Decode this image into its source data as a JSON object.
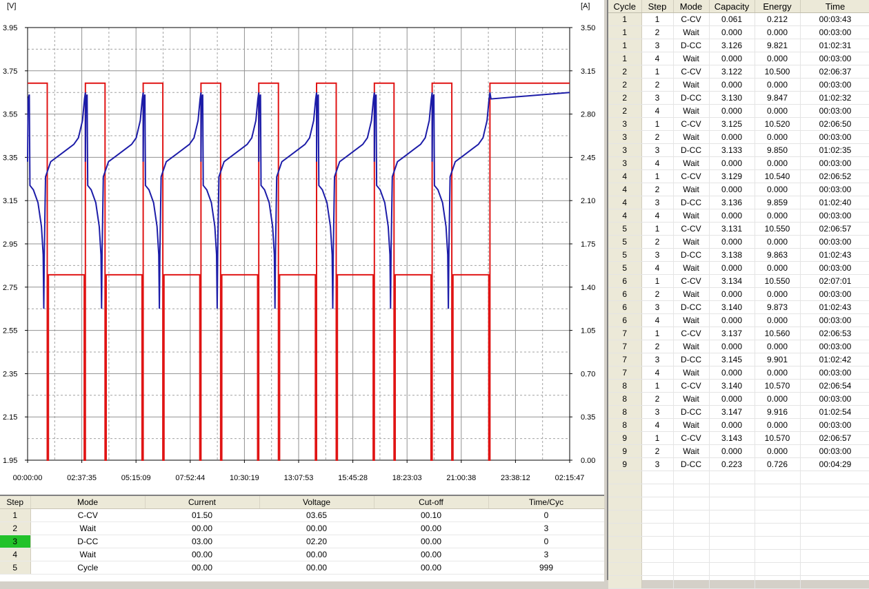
{
  "chart_data": {
    "type": "line",
    "x_ticks": [
      "00:00:00",
      "02:37:35",
      "05:15:09",
      "07:52:44",
      "10:30:19",
      "13:07:53",
      "15:45:28",
      "18:23:03",
      "21:00:38",
      "23:38:12",
      "02:15:47"
    ],
    "left_axis": {
      "unit": "[V]",
      "range": [
        1.95,
        3.95
      ],
      "ticks": [
        "3.95",
        "3.75",
        "3.55",
        "3.35",
        "3.15",
        "2.95",
        "2.75",
        "2.55",
        "2.35",
        "2.15",
        "1.95"
      ]
    },
    "right_axis": {
      "unit": "[A]",
      "range": [
        0.0,
        3.5
      ],
      "ticks": [
        "3.50",
        "3.15",
        "2.80",
        "2.45",
        "2.10",
        "1.75",
        "1.40",
        "1.05",
        "0.70",
        "0.35",
        "0.00"
      ]
    },
    "grid": true,
    "series": [
      {
        "color": "#1c1ca8",
        "axis": "left",
        "cycle_profile_v": [
          [
            0.0,
            3.33
          ],
          [
            0.01,
            3.62
          ],
          [
            0.03,
            3.64
          ],
          [
            0.04,
            3.22
          ],
          [
            0.1,
            3.2
          ],
          [
            0.18,
            3.14
          ],
          [
            0.24,
            3.03
          ],
          [
            0.27,
            2.9
          ],
          [
            0.28,
            2.65
          ],
          [
            0.29,
            2.92
          ],
          [
            0.31,
            3.26
          ],
          [
            0.4,
            3.33
          ],
          [
            0.55,
            3.36
          ],
          [
            0.7,
            3.39
          ],
          [
            0.8,
            3.41
          ],
          [
            0.88,
            3.44
          ],
          [
            0.95,
            3.52
          ],
          [
            0.985,
            3.62
          ],
          [
            1.0,
            3.65
          ]
        ]
      },
      {
        "color": "#e01414",
        "axis": "right",
        "cycle_profile_a": [
          [
            0.0,
            3.05
          ],
          [
            0.34,
            3.05
          ],
          [
            0.34,
            0.0
          ],
          [
            0.36,
            0.0
          ],
          [
            0.36,
            1.5
          ],
          [
            0.98,
            1.5
          ],
          [
            0.98,
            0.0
          ],
          [
            1.0,
            0.0
          ]
        ]
      }
    ],
    "cycles": 8,
    "cycle_starts_hours": [
      0,
      2.8,
      5.6,
      8.4,
      11.2,
      14.0,
      16.8,
      19.6,
      22.4
    ]
  },
  "step_table": {
    "headers": [
      "Step",
      "Mode",
      "Current",
      "Voltage",
      "Cut-off",
      "Time/Cyc"
    ],
    "rows": [
      [
        "1",
        "C-CV",
        "01.50",
        "03.65",
        "00.10",
        "0"
      ],
      [
        "2",
        "Wait",
        "00.00",
        "00.00",
        "00.00",
        "3"
      ],
      [
        "3",
        "D-CC",
        "03.00",
        "02.20",
        "00.00",
        "0"
      ],
      [
        "4",
        "Wait",
        "00.00",
        "00.00",
        "00.00",
        "3"
      ],
      [
        "5",
        "Cycle",
        "00.00",
        "00.00",
        "00.00",
        "999"
      ]
    ],
    "active_row": 2,
    "active_color": "#22c22a"
  },
  "result_table": {
    "headers": [
      "Cycle",
      "Step",
      "Mode",
      "Capacity",
      "Energy",
      "Time"
    ],
    "rows": [
      [
        "1",
        "1",
        "C-CV",
        "0.061",
        "0.212",
        "00:03:43"
      ],
      [
        "1",
        "2",
        "Wait",
        "0.000",
        "0.000",
        "00:03:00"
      ],
      [
        "1",
        "3",
        "D-CC",
        "3.126",
        "9.821",
        "01:02:31"
      ],
      [
        "1",
        "4",
        "Wait",
        "0.000",
        "0.000",
        "00:03:00"
      ],
      [
        "2",
        "1",
        "C-CV",
        "3.122",
        "10.500",
        "02:06:37"
      ],
      [
        "2",
        "2",
        "Wait",
        "0.000",
        "0.000",
        "00:03:00"
      ],
      [
        "2",
        "3",
        "D-CC",
        "3.130",
        "9.847",
        "01:02:32"
      ],
      [
        "2",
        "4",
        "Wait",
        "0.000",
        "0.000",
        "00:03:00"
      ],
      [
        "3",
        "1",
        "C-CV",
        "3.125",
        "10.520",
        "02:06:50"
      ],
      [
        "3",
        "2",
        "Wait",
        "0.000",
        "0.000",
        "00:03:00"
      ],
      [
        "3",
        "3",
        "D-CC",
        "3.133",
        "9.850",
        "01:02:35"
      ],
      [
        "3",
        "4",
        "Wait",
        "0.000",
        "0.000",
        "00:03:00"
      ],
      [
        "4",
        "1",
        "C-CV",
        "3.129",
        "10.540",
        "02:06:52"
      ],
      [
        "4",
        "2",
        "Wait",
        "0.000",
        "0.000",
        "00:03:00"
      ],
      [
        "4",
        "3",
        "D-CC",
        "3.136",
        "9.859",
        "01:02:40"
      ],
      [
        "4",
        "4",
        "Wait",
        "0.000",
        "0.000",
        "00:03:00"
      ],
      [
        "5",
        "1",
        "C-CV",
        "3.131",
        "10.550",
        "02:06:57"
      ],
      [
        "5",
        "2",
        "Wait",
        "0.000",
        "0.000",
        "00:03:00"
      ],
      [
        "5",
        "3",
        "D-CC",
        "3.138",
        "9.863",
        "01:02:43"
      ],
      [
        "5",
        "4",
        "Wait",
        "0.000",
        "0.000",
        "00:03:00"
      ],
      [
        "6",
        "1",
        "C-CV",
        "3.134",
        "10.550",
        "02:07:01"
      ],
      [
        "6",
        "2",
        "Wait",
        "0.000",
        "0.000",
        "00:03:00"
      ],
      [
        "6",
        "3",
        "D-CC",
        "3.140",
        "9.873",
        "01:02:43"
      ],
      [
        "6",
        "4",
        "Wait",
        "0.000",
        "0.000",
        "00:03:00"
      ],
      [
        "7",
        "1",
        "C-CV",
        "3.137",
        "10.560",
        "02:06:53"
      ],
      [
        "7",
        "2",
        "Wait",
        "0.000",
        "0.000",
        "00:03:00"
      ],
      [
        "7",
        "3",
        "D-CC",
        "3.145",
        "9.901",
        "01:02:42"
      ],
      [
        "7",
        "4",
        "Wait",
        "0.000",
        "0.000",
        "00:03:00"
      ],
      [
        "8",
        "1",
        "C-CV",
        "3.140",
        "10.570",
        "02:06:54"
      ],
      [
        "8",
        "2",
        "Wait",
        "0.000",
        "0.000",
        "00:03:00"
      ],
      [
        "8",
        "3",
        "D-CC",
        "3.147",
        "9.916",
        "01:02:54"
      ],
      [
        "8",
        "4",
        "Wait",
        "0.000",
        "0.000",
        "00:03:00"
      ],
      [
        "9",
        "1",
        "C-CV",
        "3.143",
        "10.570",
        "02:06:57"
      ],
      [
        "9",
        "2",
        "Wait",
        "0.000",
        "0.000",
        "00:03:00"
      ],
      [
        "9",
        "3",
        "D-CC",
        "0.223",
        "0.726",
        "00:04:29"
      ]
    ],
    "empty_rows": 9
  }
}
